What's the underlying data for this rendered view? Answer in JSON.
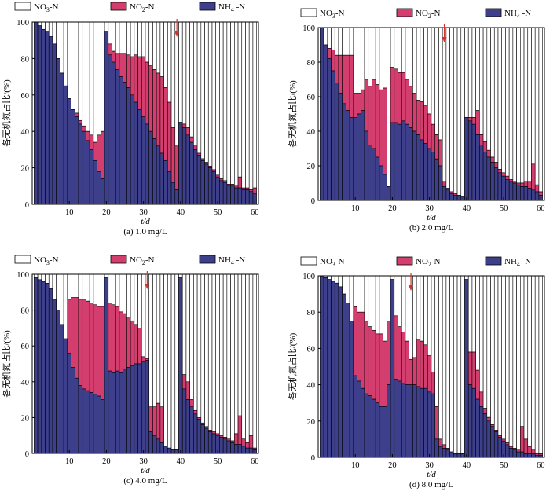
{
  "chart_data": [
    {
      "type": "bar",
      "stacked": true,
      "caption": "(a)  1.0 mg/L",
      "xlabel": "t/d",
      "ylabel": "各无机氮占比/(%)",
      "xlim": [
        0,
        61
      ],
      "ylim": [
        0,
        100
      ],
      "xticks": [
        10,
        20,
        30,
        40,
        50,
        60
      ],
      "yticks": [
        0,
        20,
        40,
        60,
        80,
        100
      ],
      "legend": {
        "position": "top",
        "entries": [
          "NO3-N",
          "NO2-N",
          "NH4-N"
        ]
      },
      "arrow_day": 39,
      "x": [
        1,
        2,
        3,
        4,
        5,
        6,
        7,
        8,
        9,
        10,
        11,
        12,
        13,
        14,
        15,
        16,
        17,
        18,
        19,
        20,
        21,
        22,
        23,
        24,
        25,
        26,
        27,
        28,
        29,
        30,
        31,
        32,
        33,
        34,
        35,
        36,
        37,
        38,
        39,
        40,
        41,
        42,
        43,
        44,
        45,
        46,
        47,
        48,
        49,
        50,
        51,
        52,
        53,
        54,
        55,
        56,
        57,
        58,
        59,
        60
      ],
      "series": [
        {
          "name": "NH4-N",
          "values": [
            100,
            98,
            96,
            95,
            92,
            88,
            80,
            72,
            65,
            58,
            52,
            48,
            44,
            40,
            35,
            30,
            24,
            18,
            14,
            95,
            82,
            78,
            74,
            70,
            67,
            64,
            60,
            56,
            52,
            48,
            44,
            40,
            36,
            32,
            28,
            24,
            18,
            12,
            8,
            45,
            42,
            38,
            34,
            30,
            27,
            24,
            22,
            20,
            18,
            15,
            13,
            12,
            10,
            10,
            9,
            9,
            8,
            8,
            7,
            6
          ]
        },
        {
          "name": "NO2-N",
          "values": [
            0,
            0,
            0,
            0,
            0,
            0,
            0,
            0,
            0,
            0,
            0,
            2,
            2,
            3,
            5,
            8,
            10,
            20,
            26,
            0,
            6,
            6,
            9,
            13,
            16,
            18,
            21,
            26,
            29,
            33,
            34,
            36,
            38,
            40,
            42,
            40,
            38,
            30,
            24,
            0,
            2,
            4,
            3,
            2,
            1,
            1,
            1,
            1,
            1,
            1,
            1,
            1,
            1,
            1,
            1,
            6,
            1,
            1,
            1,
            3
          ]
        }
      ]
    },
    {
      "type": "bar",
      "stacked": true,
      "caption": "(b)  2.0 mg/L",
      "xlabel": "t/d",
      "ylabel": "各无机氮占比/(%)",
      "xlim": [
        0,
        61
      ],
      "ylim": [
        0,
        100
      ],
      "xticks": [
        10,
        20,
        30,
        40,
        50,
        60
      ],
      "yticks": [
        0,
        20,
        40,
        60,
        80,
        100
      ],
      "legend": {
        "position": "top",
        "entries": [
          "NO3-N",
          "NO2-N",
          "NH4-N"
        ]
      },
      "arrow_day": 34,
      "x": [
        1,
        2,
        3,
        4,
        5,
        6,
        7,
        8,
        9,
        10,
        11,
        12,
        13,
        14,
        15,
        16,
        17,
        18,
        19,
        20,
        21,
        22,
        23,
        24,
        25,
        26,
        27,
        28,
        29,
        30,
        31,
        32,
        33,
        34,
        35,
        36,
        37,
        38,
        39,
        40,
        41,
        42,
        43,
        44,
        45,
        46,
        47,
        48,
        49,
        50,
        51,
        52,
        53,
        54,
        55,
        56,
        57,
        58,
        59,
        60
      ],
      "series": [
        {
          "name": "NH4-N",
          "values": [
            100,
            90,
            82,
            75,
            68,
            62,
            56,
            52,
            48,
            48,
            50,
            52,
            40,
            32,
            30,
            25,
            20,
            15,
            8,
            45,
            45,
            44,
            46,
            44,
            42,
            40,
            38,
            35,
            33,
            30,
            28,
            24,
            20,
            8,
            6,
            4,
            3,
            3,
            2,
            48,
            46,
            44,
            38,
            32,
            28,
            25,
            22,
            19,
            16,
            14,
            12,
            11,
            10,
            9,
            8,
            8,
            7,
            6,
            5,
            3
          ]
        },
        {
          "name": "NO2-N",
          "values": [
            0,
            0,
            6,
            12,
            16,
            22,
            28,
            32,
            36,
            14,
            12,
            12,
            30,
            34,
            40,
            42,
            44,
            50,
            0,
            32,
            31,
            30,
            28,
            26,
            24,
            22,
            20,
            22,
            22,
            20,
            16,
            14,
            15,
            3,
            1,
            1,
            1,
            0,
            0,
            0,
            2,
            4,
            14,
            6,
            6,
            4,
            3,
            3,
            2,
            2,
            2,
            1,
            1,
            1,
            2,
            3,
            4,
            15,
            4,
            2
          ]
        }
      ]
    },
    {
      "type": "bar",
      "stacked": true,
      "caption": "(c)  4.0 mg/L",
      "xlabel": "t/d",
      "ylabel": "各无机氮占比/(%)",
      "xlim": [
        0,
        61
      ],
      "ylim": [
        0,
        100
      ],
      "xticks": [
        10,
        20,
        30,
        40,
        50,
        60
      ],
      "yticks": [
        0,
        20,
        40,
        60,
        80,
        100
      ],
      "legend": {
        "position": "top",
        "entries": [
          "NO3-N",
          "NO2-N",
          "NH4-N"
        ]
      },
      "arrow_day": 31,
      "x": [
        1,
        2,
        3,
        4,
        5,
        6,
        7,
        8,
        9,
        10,
        11,
        12,
        13,
        14,
        15,
        16,
        17,
        18,
        19,
        20,
        21,
        22,
        23,
        24,
        25,
        26,
        27,
        28,
        29,
        30,
        31,
        32,
        33,
        34,
        35,
        36,
        37,
        38,
        39,
        40,
        41,
        42,
        43,
        44,
        45,
        46,
        47,
        48,
        49,
        50,
        51,
        52,
        53,
        54,
        55,
        56,
        57,
        58,
        59,
        60
      ],
      "series": [
        {
          "name": "NH4-N",
          "values": [
            98,
            97,
            96,
            95,
            92,
            86,
            80,
            72,
            64,
            56,
            48,
            42,
            38,
            36,
            35,
            34,
            33,
            32,
            30,
            98,
            46,
            45,
            46,
            45,
            47,
            48,
            49,
            50,
            50,
            51,
            52,
            12,
            10,
            8,
            6,
            4,
            3,
            2,
            2,
            98,
            36,
            30,
            26,
            22,
            19,
            16,
            14,
            12,
            11,
            10,
            9,
            8,
            7,
            6,
            5,
            5,
            4,
            3,
            3,
            2
          ]
        },
        {
          "name": "NO2-N",
          "values": [
            0,
            0,
            0,
            0,
            0,
            0,
            0,
            0,
            0,
            30,
            39,
            45,
            48,
            50,
            50,
            50,
            50,
            50,
            52,
            0,
            38,
            38,
            36,
            34,
            31,
            28,
            25,
            22,
            20,
            3,
            1,
            14,
            16,
            20,
            20,
            0,
            0,
            0,
            0,
            0,
            8,
            10,
            4,
            2,
            1,
            1,
            1,
            1,
            1,
            1,
            1,
            1,
            1,
            1,
            6,
            16,
            4,
            3,
            7,
            1
          ]
        }
      ]
    },
    {
      "type": "bar",
      "stacked": true,
      "caption": "(d)  8.0 mg/L",
      "xlabel": "t/d",
      "ylabel": "各无机氮占比/(%)",
      "xlim": [
        0,
        61
      ],
      "ylim": [
        0,
        100
      ],
      "xticks": [
        10,
        20,
        30,
        40,
        50,
        60
      ],
      "yticks": [
        0,
        20,
        40,
        60,
        80,
        100
      ],
      "legend": {
        "position": "top",
        "entries": [
          "NO3-N",
          "NO2-N",
          "NH4-N"
        ]
      },
      "arrow_day": 25,
      "x": [
        1,
        2,
        3,
        4,
        5,
        6,
        7,
        8,
        9,
        10,
        11,
        12,
        13,
        14,
        15,
        16,
        17,
        18,
        19,
        20,
        21,
        22,
        23,
        24,
        25,
        26,
        27,
        28,
        29,
        30,
        31,
        32,
        33,
        34,
        35,
        36,
        37,
        38,
        39,
        40,
        41,
        42,
        43,
        44,
        45,
        46,
        47,
        48,
        49,
        50,
        51,
        52,
        53,
        54,
        55,
        56,
        57,
        58,
        59,
        60
      ],
      "series": [
        {
          "name": "NH4-N",
          "values": [
            100,
            99,
            98,
            97,
            96,
            94,
            90,
            85,
            75,
            45,
            42,
            38,
            35,
            34,
            32,
            30,
            28,
            28,
            40,
            98,
            43,
            42,
            41,
            40,
            40,
            40,
            39,
            38,
            38,
            36,
            35,
            10,
            6,
            5,
            4,
            3,
            2,
            2,
            2,
            98,
            40,
            38,
            32,
            28,
            24,
            20,
            17,
            14,
            11,
            9,
            7,
            5,
            4,
            3,
            3,
            2,
            2,
            2,
            1,
            1
          ]
        },
        {
          "name": "NO2-N",
          "values": [
            0,
            0,
            0,
            0,
            0,
            0,
            0,
            0,
            0,
            38,
            38,
            42,
            40,
            38,
            38,
            38,
            40,
            36,
            35,
            0,
            35,
            30,
            28,
            24,
            14,
            15,
            26,
            26,
            24,
            20,
            12,
            18,
            4,
            2,
            1,
            0,
            0,
            0,
            0,
            0,
            18,
            20,
            16,
            8,
            3,
            2,
            1,
            1,
            1,
            1,
            1,
            1,
            1,
            1,
            14,
            8,
            4,
            2,
            1,
            1
          ]
        }
      ]
    }
  ]
}
